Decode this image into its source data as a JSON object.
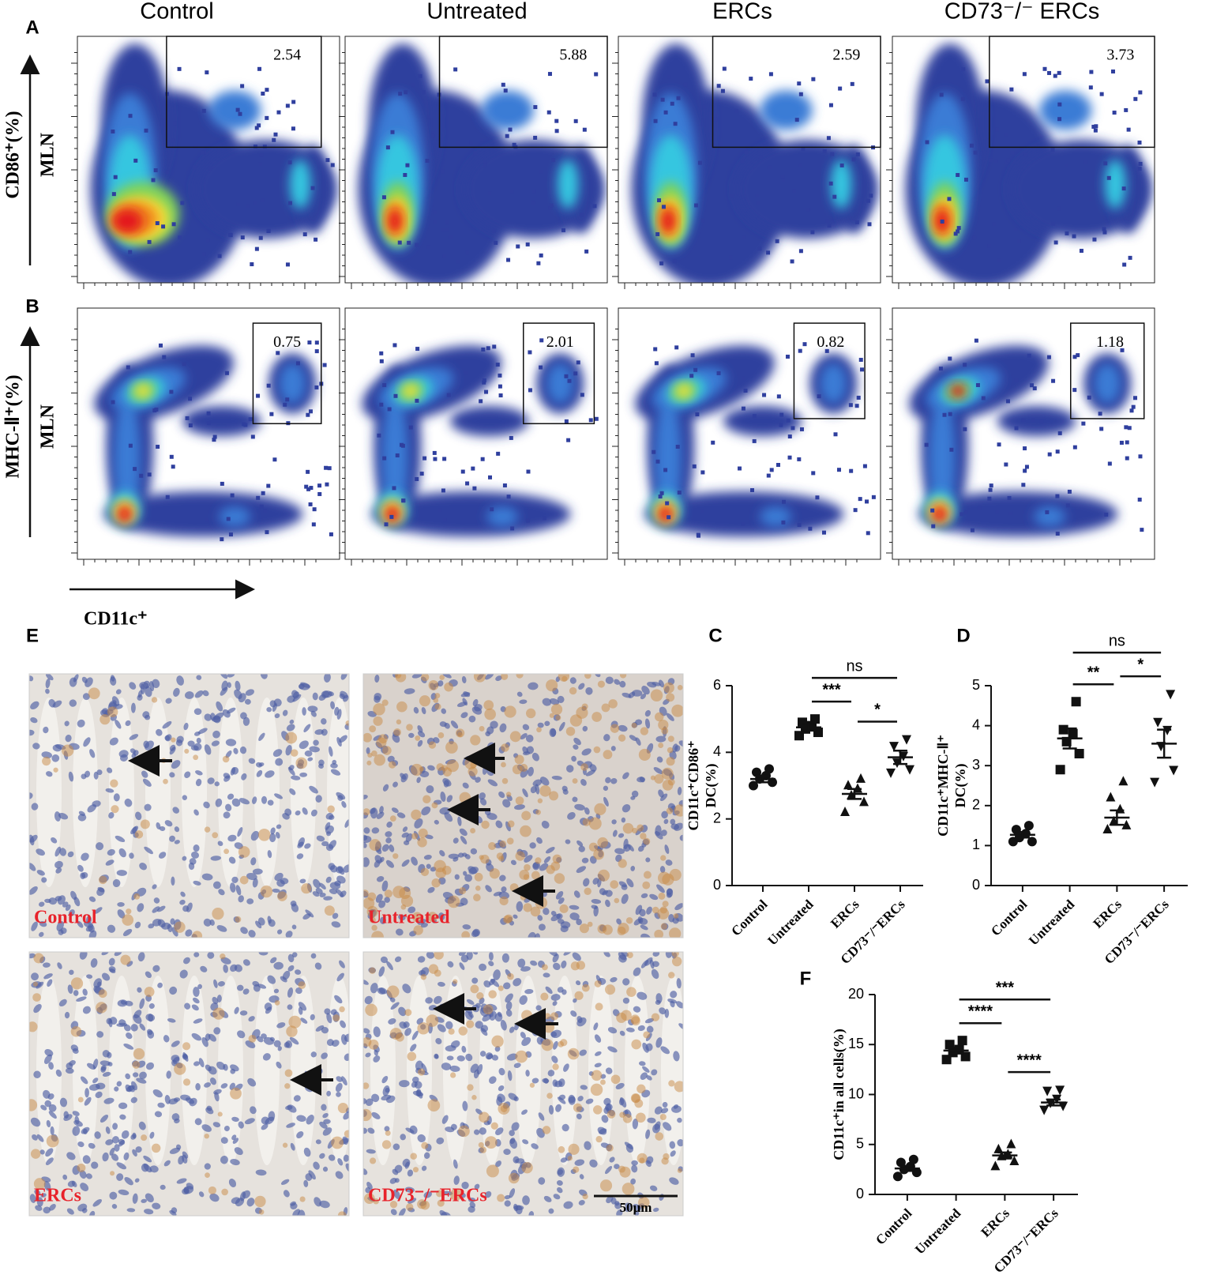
{
  "panel_letters": [
    "A",
    "B",
    "C",
    "D",
    "E",
    "F"
  ],
  "flow": {
    "columns": [
      "Control",
      "Untreated",
      "ERCs",
      "CD73⁻/⁻ ERCs"
    ],
    "rows": [
      {
        "y_label": "CD86⁺(%)",
        "tissue": "MLN",
        "gates": [
          2.54,
          5.88,
          2.59,
          3.73
        ]
      },
      {
        "y_label": "MHC-Ⅱ⁺(%)",
        "tissue": "MLN",
        "gates": [
          0.75,
          2.01,
          0.82,
          1.18
        ]
      }
    ],
    "x_label": "CD11c⁺"
  },
  "histology": {
    "labels": [
      "Control",
      "Untreated",
      "ERCs",
      "CD73⁻/⁻ERCs"
    ],
    "scale_bar": "50μm"
  },
  "chart_data": [
    {
      "type": "strip",
      "ylabel": [
        "CD11c⁺CD86⁺",
        "DC(%)"
      ],
      "categories": [
        "Control",
        "Untreated",
        "ERCs",
        "CD73⁻/⁻ERCs"
      ],
      "markers": [
        "circle",
        "square",
        "triangle",
        "triangle-down"
      ],
      "color": "#111111",
      "groups": [
        [
          3.0,
          3.1,
          3.2,
          3.3,
          3.4,
          3.5
        ],
        [
          4.5,
          4.6,
          4.7,
          4.8,
          4.9,
          5.0
        ],
        [
          2.2,
          2.5,
          2.7,
          2.9,
          3.0,
          3.2
        ],
        [
          3.4,
          3.5,
          3.7,
          3.9,
          4.2,
          4.4
        ]
      ],
      "means": [
        3.2,
        4.75,
        2.75,
        3.85
      ],
      "errors": [
        0.1,
        0.1,
        0.15,
        0.2
      ],
      "ylim": [
        0,
        6
      ],
      "yticks": [
        0,
        2,
        4,
        6
      ],
      "annotations": [
        {
          "label": "***",
          "between": [
            "Untreated",
            "ERCs"
          ]
        },
        {
          "label": "*",
          "between": [
            "ERCs",
            "CD73⁻/⁻ERCs"
          ]
        },
        {
          "label": "ns",
          "between": [
            "Untreated",
            "CD73⁻/⁻ERCs"
          ]
        }
      ]
    },
    {
      "type": "strip",
      "ylabel": [
        "CD11c⁺MHC-Ⅱ⁺",
        "DC(%)"
      ],
      "categories": [
        "Control",
        "Untreated",
        "ERCs",
        "CD73⁻/⁻ERCs"
      ],
      "markers": [
        "circle",
        "square",
        "triangle",
        "triangle-down"
      ],
      "color": "#111111",
      "groups": [
        [
          1.1,
          1.1,
          1.2,
          1.3,
          1.4,
          1.5
        ],
        [
          2.9,
          3.3,
          3.6,
          3.8,
          3.9,
          4.6
        ],
        [
          1.4,
          1.5,
          1.6,
          1.9,
          2.2,
          2.6
        ],
        [
          2.6,
          2.9,
          3.5,
          3.9,
          4.1,
          4.8
        ]
      ],
      "means": [
        1.27,
        3.68,
        1.7,
        3.55
      ],
      "errors": [
        0.07,
        0.25,
        0.18,
        0.35
      ],
      "ylim": [
        0,
        5
      ],
      "yticks": [
        0,
        1,
        2,
        3,
        4,
        5
      ],
      "annotations": [
        {
          "label": "**",
          "between": [
            "Untreated",
            "ERCs"
          ]
        },
        {
          "label": "*",
          "between": [
            "ERCs",
            "CD73⁻/⁻ERCs"
          ]
        },
        {
          "label": "ns",
          "between": [
            "Untreated",
            "CD73⁻/⁻ERCs"
          ]
        }
      ]
    },
    {
      "type": "strip",
      "ylabel": [
        "CD11c⁺in all cells(%)"
      ],
      "categories": [
        "Control",
        "Untreated",
        "ERCs",
        "CD73⁻/⁻ERCs"
      ],
      "markers": [
        "circle",
        "square",
        "triangle",
        "triangle-down"
      ],
      "color": "#111111",
      "groups": [
        [
          1.8,
          2.2,
          2.5,
          2.8,
          3.2,
          3.5
        ],
        [
          13.5,
          13.8,
          14.2,
          14.5,
          15.0,
          15.4
        ],
        [
          2.8,
          3.3,
          3.8,
          4.0,
          4.5,
          5.0
        ],
        [
          8.5,
          8.9,
          9.2,
          9.6,
          10.4,
          10.5
        ]
      ],
      "means": [
        2.6,
        14.4,
        3.9,
        9.2
      ],
      "errors": [
        0.25,
        0.3,
        0.3,
        0.3
      ],
      "ylim": [
        0,
        20
      ],
      "yticks": [
        0,
        5,
        10,
        15,
        20
      ],
      "annotations": [
        {
          "label": "****",
          "between": [
            "Untreated",
            "ERCs"
          ]
        },
        {
          "label": "****",
          "between": [
            "ERCs",
            "CD73⁻/⁻ERCs"
          ]
        },
        {
          "label": "***",
          "between": [
            "Untreated",
            "CD73⁻/⁻ERCs"
          ]
        }
      ]
    }
  ]
}
